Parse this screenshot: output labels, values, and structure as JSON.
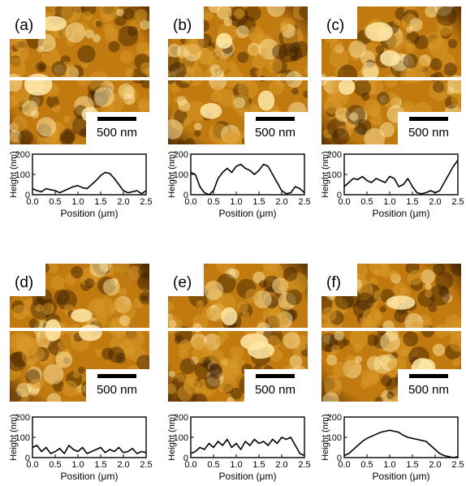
{
  "figure": {
    "colors": {
      "afm_dark": "#3a1c00",
      "afm_mid": "#c07a10",
      "afm_light": "#ffe9a8",
      "line_cut": "#ffffff",
      "profile": "#000000"
    },
    "panels": [
      {
        "id": "a",
        "label": "(a)",
        "scale_bar": "500 nm",
        "profile": {
          "type": "line",
          "xlabel": "Position (μm)",
          "ylabel": "Height (nm)",
          "xlim": [
            0,
            2.5
          ],
          "ylim": [
            0,
            200
          ],
          "xticks": [
            "0.0",
            "0.5",
            "1.0",
            "1.5",
            "2.0",
            "2.5"
          ],
          "yticks": [
            "0",
            "100",
            "200"
          ],
          "x": [
            0,
            0.1,
            0.2,
            0.3,
            0.4,
            0.5,
            0.6,
            0.7,
            0.8,
            0.9,
            1.0,
            1.1,
            1.2,
            1.3,
            1.4,
            1.5,
            1.6,
            1.7,
            1.8,
            1.9,
            2.0,
            2.1,
            2.2,
            2.3,
            2.4,
            2.5
          ],
          "y": [
            30,
            20,
            15,
            30,
            25,
            20,
            10,
            20,
            30,
            40,
            45,
            35,
            30,
            50,
            70,
            95,
            110,
            105,
            80,
            50,
            20,
            10,
            15,
            20,
            5,
            20
          ]
        }
      },
      {
        "id": "b",
        "label": "(b)",
        "scale_bar": "500 nm",
        "profile": {
          "type": "line",
          "xlabel": "Position (μm)",
          "ylabel": "Height (nm)",
          "xlim": [
            0,
            2.5
          ],
          "ylim": [
            0,
            200
          ],
          "xticks": [
            "0.0",
            "0.5",
            "1.0",
            "1.5",
            "2.0",
            "2.5"
          ],
          "yticks": [
            "0",
            "100",
            "200"
          ],
          "x": [
            0,
            0.1,
            0.2,
            0.3,
            0.4,
            0.5,
            0.6,
            0.7,
            0.8,
            0.9,
            1.0,
            1.1,
            1.2,
            1.3,
            1.4,
            1.5,
            1.6,
            1.7,
            1.8,
            1.9,
            2.0,
            2.1,
            2.2,
            2.3,
            2.4,
            2.5
          ],
          "y": [
            110,
            100,
            40,
            10,
            0,
            20,
            80,
            110,
            130,
            110,
            140,
            150,
            130,
            120,
            100,
            120,
            150,
            140,
            100,
            60,
            20,
            5,
            10,
            40,
            30,
            10
          ]
        }
      },
      {
        "id": "c",
        "label": "(c)",
        "scale_bar": "500 nm",
        "profile": {
          "type": "line",
          "xlabel": "Position (μm)",
          "ylabel": "Height (nm)",
          "xlim": [
            0,
            2.5
          ],
          "ylim": [
            0,
            200
          ],
          "xticks": [
            "0.0",
            "0.5",
            "1.0",
            "1.5",
            "2.0",
            "2.5"
          ],
          "yticks": [
            "0",
            "100",
            "200"
          ],
          "x": [
            0,
            0.1,
            0.2,
            0.3,
            0.4,
            0.5,
            0.6,
            0.7,
            0.8,
            0.9,
            1.0,
            1.1,
            1.2,
            1.3,
            1.4,
            1.5,
            1.6,
            1.7,
            1.8,
            1.9,
            2.0,
            2.1,
            2.2,
            2.3,
            2.4,
            2.5
          ],
          "y": [
            40,
            60,
            80,
            75,
            90,
            70,
            60,
            80,
            70,
            60,
            90,
            80,
            40,
            50,
            80,
            40,
            10,
            5,
            10,
            20,
            10,
            20,
            60,
            100,
            140,
            170
          ]
        }
      },
      {
        "id": "d",
        "label": "(d)",
        "scale_bar": "500 nm",
        "profile": {
          "type": "line",
          "xlabel": "Position (μm)",
          "ylabel": "Height (nm)",
          "xlim": [
            0,
            2.5
          ],
          "ylim": [
            0,
            200
          ],
          "xticks": [
            "0.0",
            "0.5",
            "1.0",
            "1.5",
            "2.0",
            "2.5"
          ],
          "yticks": [
            "0",
            "100",
            "200"
          ],
          "x": [
            0,
            0.1,
            0.2,
            0.3,
            0.4,
            0.5,
            0.6,
            0.7,
            0.8,
            0.9,
            1.0,
            1.1,
            1.2,
            1.3,
            1.4,
            1.5,
            1.6,
            1.7,
            1.8,
            1.9,
            2.0,
            2.1,
            2.2,
            2.3,
            2.4,
            2.5
          ],
          "y": [
            50,
            60,
            30,
            50,
            20,
            30,
            45,
            20,
            60,
            40,
            30,
            50,
            20,
            30,
            40,
            50,
            25,
            40,
            30,
            50,
            25,
            30,
            45,
            20,
            30,
            25
          ]
        }
      },
      {
        "id": "e",
        "label": "(e)",
        "scale_bar": "500 nm",
        "profile": {
          "type": "line",
          "xlabel": "Position (μm)",
          "ylabel": "Height (nm)",
          "xlim": [
            0,
            2.5
          ],
          "ylim": [
            0,
            200
          ],
          "xticks": [
            "0.0",
            "0.5",
            "1.0",
            "1.5",
            "2.0",
            "2.5"
          ],
          "yticks": [
            "0",
            "100",
            "200"
          ],
          "x": [
            0,
            0.1,
            0.2,
            0.3,
            0.4,
            0.5,
            0.6,
            0.7,
            0.8,
            0.9,
            1.0,
            1.1,
            1.2,
            1.3,
            1.4,
            1.5,
            1.6,
            1.7,
            1.8,
            1.9,
            2.0,
            2.1,
            2.2,
            2.3,
            2.4,
            2.5
          ],
          "y": [
            20,
            30,
            50,
            40,
            70,
            50,
            80,
            60,
            90,
            50,
            70,
            40,
            80,
            60,
            90,
            70,
            80,
            60,
            90,
            70,
            100,
            90,
            100,
            60,
            20,
            10
          ]
        }
      },
      {
        "id": "f",
        "label": "(f)",
        "scale_bar": "500 nm",
        "profile": {
          "type": "line",
          "xlabel": "Position (μm)",
          "ylabel": "Height (nm)",
          "xlim": [
            0,
            2.5
          ],
          "ylim": [
            0,
            200
          ],
          "xticks": [
            "0.0",
            "0.5",
            "1.0",
            "1.5",
            "2.0",
            "2.5"
          ],
          "yticks": [
            "0",
            "100",
            "200"
          ],
          "x": [
            0,
            0.1,
            0.2,
            0.3,
            0.4,
            0.5,
            0.6,
            0.7,
            0.8,
            0.9,
            1.0,
            1.1,
            1.2,
            1.3,
            1.4,
            1.5,
            1.6,
            1.7,
            1.8,
            1.9,
            2.0,
            2.1,
            2.2,
            2.3,
            2.4,
            2.5
          ],
          "y": [
            10,
            20,
            40,
            60,
            80,
            95,
            105,
            115,
            125,
            130,
            135,
            130,
            125,
            110,
            100,
            95,
            90,
            85,
            80,
            60,
            40,
            20,
            10,
            5,
            0,
            5
          ]
        }
      }
    ]
  }
}
